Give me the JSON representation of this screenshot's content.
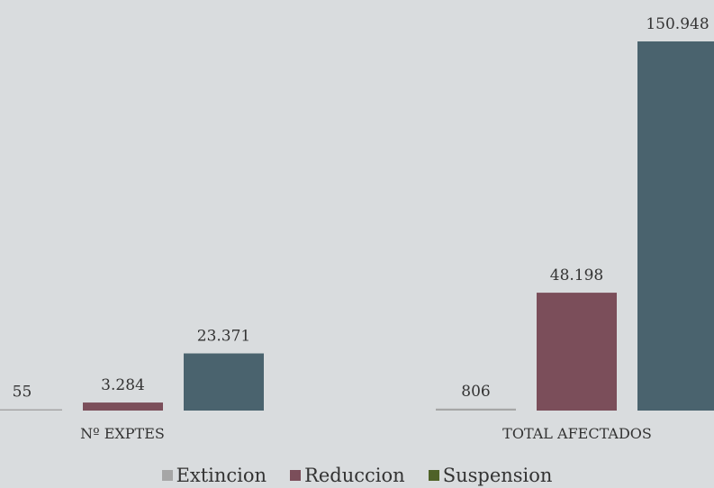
{
  "chart_data": {
    "type": "bar",
    "categories": [
      "Nº EXPTES",
      "TOTAL AFECTADOS"
    ],
    "series": [
      {
        "name": "Extincion",
        "color": "#a6a6a6",
        "values": [
          55,
          806
        ],
        "labels": [
          "55",
          "806"
        ]
      },
      {
        "name": "Reduccion",
        "color": "#7b4e5a",
        "values": [
          3284,
          48198
        ],
        "labels": [
          "3.284",
          "48.198"
        ]
      },
      {
        "name": "Suspension",
        "color": "#4a636e",
        "values": [
          23371,
          150948
        ],
        "labels": [
          "23.371",
          "150.948"
        ]
      }
    ],
    "legend": [
      {
        "name": "Extincion",
        "color": "#a6a6a6"
      },
      {
        "name": "Reduccion",
        "color": "#7b4e5a"
      },
      {
        "name": "Suspension",
        "color": "#4f6228"
      }
    ],
    "ylim": [
      0,
      150948
    ],
    "grid": false,
    "legend_position": "bottom"
  }
}
